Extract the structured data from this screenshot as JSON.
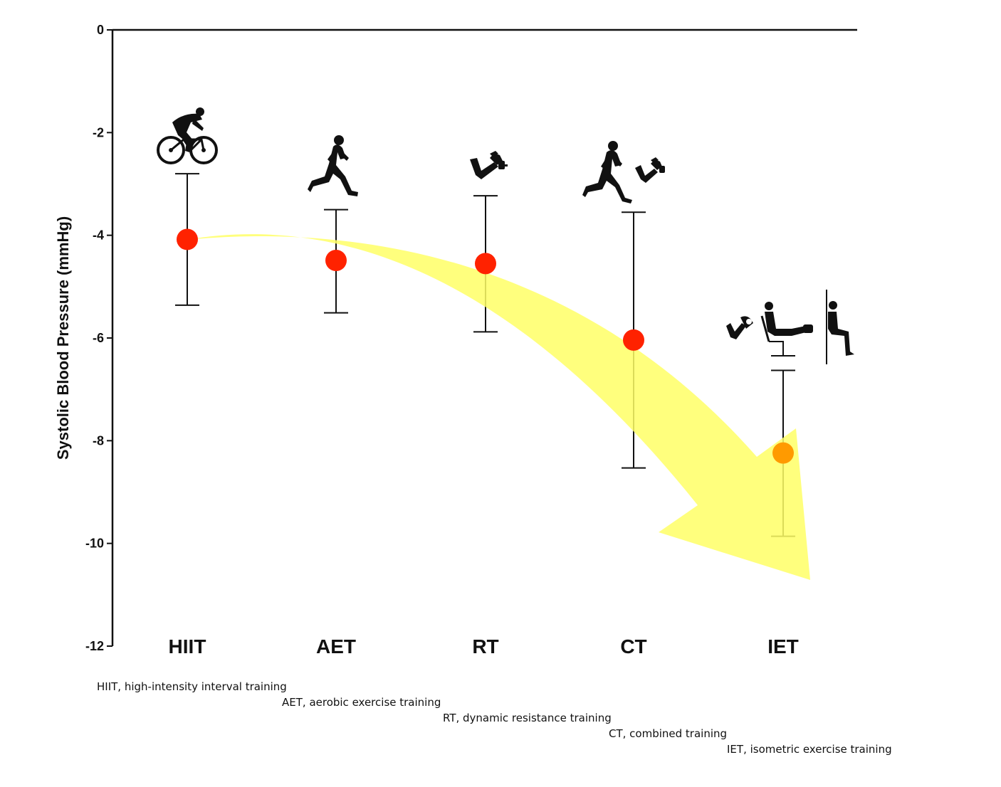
{
  "chart_data": {
    "type": "scatter",
    "title": "",
    "ylabel": "Systolic Blood Pressure (mmHg)",
    "xlabel": "",
    "ylim": [
      -12,
      0
    ],
    "yticks": [
      "0",
      "-2",
      "-4",
      "-6",
      "-8",
      "-10",
      "-12"
    ],
    "categories": [
      "HIIT",
      "AET",
      "RT",
      "CT",
      "IET"
    ],
    "series": [
      {
        "values": [
          -4.08,
          -4.49,
          -4.55,
          -6.04,
          -8.24
        ],
        "ci_upper": [
          -2.8,
          -3.5,
          -3.23,
          -3.55,
          -6.63
        ],
        "ci_lower": [
          -5.36,
          -5.51,
          -5.88,
          -8.53,
          -9.86
        ],
        "colors": [
          "#ff2200",
          "#ff2200",
          "#ff2200",
          "#ff2200",
          "#ff9a00"
        ]
      }
    ],
    "grid": false,
    "legend": "none",
    "annotation": "yellow curved arrow trending downward from HIIT to IET"
  },
  "footnotes": [
    "HIIT, high-intensity interval training",
    "AET, aerobic exercise training",
    "RT, dynamic resistance training",
    "CT, combined training",
    "IET, isometric exercise training"
  ],
  "icons": [
    "cyclist-icon",
    "runner-icon",
    "arm-curl-icon",
    "runner-icon",
    "arm-curl-icon",
    "handgrip-icon",
    "leg-extension-icon",
    "wall-squat-icon"
  ],
  "colors": {
    "point": "#ff2200",
    "point_iet": "#ff9a00",
    "arrow": "#ffff66",
    "axis": "#111111"
  }
}
